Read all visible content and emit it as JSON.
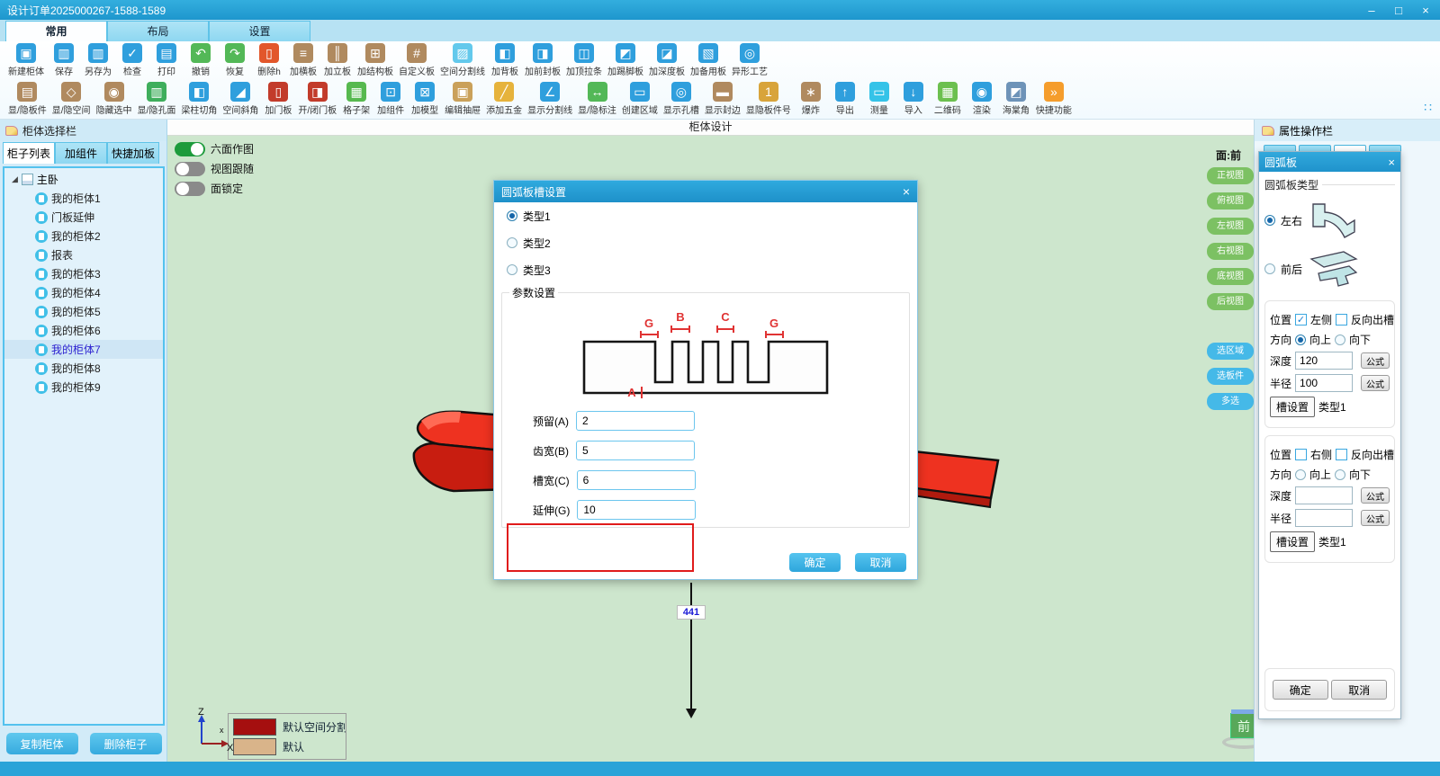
{
  "window": {
    "title": "设计订单2025000267-1588-1589",
    "minimize": "–",
    "maximize": "□",
    "close": "×"
  },
  "ribbon_tabs": [
    {
      "label": "常用",
      "active": true
    },
    {
      "label": "布局",
      "active": false
    },
    {
      "label": "设置",
      "active": false
    }
  ],
  "toolbar": {
    "overflow_glyph": "∷",
    "row1": [
      {
        "label": "新建柜体",
        "icon": "new-cabinet-icon",
        "g": "▣",
        "c": "#2f9fdd"
      },
      {
        "label": "保存",
        "icon": "save-icon",
        "g": "▥",
        "c": "#2f9fdd"
      },
      {
        "label": "另存为",
        "icon": "save-as-icon",
        "g": "▥",
        "c": "#2f9fdd"
      },
      {
        "label": "检查",
        "icon": "check-icon",
        "g": "✓",
        "c": "#2f9fdd"
      },
      {
        "label": "打印",
        "icon": "print-icon",
        "g": "▤",
        "c": "#2f9fdd"
      },
      {
        "label": "撤销",
        "icon": "undo-icon",
        "g": "↶",
        "c": "#53b857"
      },
      {
        "label": "恢复",
        "icon": "redo-icon",
        "g": "↷",
        "c": "#53b857"
      },
      {
        "label": "删除h",
        "icon": "delete-icon",
        "g": "▯",
        "c": "#e2572b"
      },
      {
        "label": "加横板",
        "icon": "add-horizontal-board-icon",
        "g": "≡",
        "c": "#b08a5f"
      },
      {
        "label": "加立板",
        "icon": "add-vertical-board-icon",
        "g": "║",
        "c": "#b08a5f"
      },
      {
        "label": "加结构板",
        "icon": "add-structure-board-icon",
        "g": "⊞",
        "c": "#b08a5f"
      },
      {
        "label": "自定义板",
        "icon": "custom-board-icon",
        "g": "#",
        "c": "#b08a5f"
      },
      {
        "label": "空间分割线",
        "icon": "space-divider-icon",
        "g": "▨",
        "c": "#63c9ec"
      },
      {
        "label": "加背板",
        "icon": "add-back-board-icon",
        "g": "◧",
        "c": "#2f9fdd"
      },
      {
        "label": "加前封板",
        "icon": "add-front-seal-board-icon",
        "g": "◨",
        "c": "#2f9fdd"
      },
      {
        "label": "加顶拉条",
        "icon": "add-top-rail-icon",
        "g": "◫",
        "c": "#2f9fdd"
      },
      {
        "label": "加踢脚板",
        "icon": "add-kickboard-icon",
        "g": "◩",
        "c": "#2f9fdd"
      },
      {
        "label": "加深度板",
        "icon": "add-depth-board-icon",
        "g": "◪",
        "c": "#2f9fdd"
      },
      {
        "label": "加备用板",
        "icon": "add-spare-board-icon",
        "g": "▧",
        "c": "#2f9fdd"
      },
      {
        "label": "异形工艺",
        "icon": "special-craft-icon",
        "g": "◎",
        "c": "#2f9fdd"
      }
    ],
    "row2": [
      {
        "label": "显/隐板件",
        "icon": "toggle-panels-icon",
        "g": "▤",
        "c": "#b08a5f"
      },
      {
        "label": "显/隐空间",
        "icon": "toggle-space-icon",
        "g": "◇",
        "c": "#b08a5f"
      },
      {
        "label": "隐藏选中",
        "icon": "hide-selected-icon",
        "g": "◉",
        "c": "#b08a5f"
      },
      {
        "label": "显/隐孔面",
        "icon": "toggle-hole-face-icon",
        "g": "▥",
        "c": "#3fae5c"
      },
      {
        "label": "梁柱切角",
        "icon": "beam-corner-cut-icon",
        "g": "◧",
        "c": "#2f9fdd"
      },
      {
        "label": "空间斜角",
        "icon": "space-bevel-icon",
        "g": "◢",
        "c": "#2f9fdd"
      },
      {
        "label": "加门板",
        "icon": "add-door-icon",
        "g": "▯",
        "c": "#c23b2a"
      },
      {
        "label": "开/闭门板",
        "icon": "open-close-door-icon",
        "g": "◨",
        "c": "#c23b2a"
      },
      {
        "label": "格子架",
        "icon": "grid-rack-icon",
        "g": "▦",
        "c": "#57b94f"
      },
      {
        "label": "加组件",
        "icon": "add-component-icon",
        "g": "⊡",
        "c": "#2f9fdd"
      },
      {
        "label": "加模型",
        "icon": "add-model-icon",
        "g": "⊠",
        "c": "#2f9fdd"
      },
      {
        "label": "编辑抽屉",
        "icon": "edit-drawer-icon",
        "g": "▣",
        "c": "#caa15a"
      },
      {
        "label": "添加五金",
        "icon": "add-hardware-icon",
        "g": "╱",
        "c": "#e6b33c"
      },
      {
        "label": "显示分割线",
        "icon": "show-divider-line-icon",
        "g": "∠",
        "c": "#2f9fdd"
      },
      {
        "label": "显/隐标注",
        "icon": "toggle-dimension-icon",
        "g": "↔",
        "c": "#53b857"
      },
      {
        "label": "创建区域",
        "icon": "create-region-icon",
        "g": "▭",
        "c": "#2f9fdd"
      },
      {
        "label": "显示孔槽",
        "icon": "show-hole-slot-icon",
        "g": "◎",
        "c": "#2f9fdd"
      },
      {
        "label": "显示封边",
        "icon": "show-edge-band-icon",
        "g": "▬",
        "c": "#b08a5f"
      },
      {
        "label": "显隐板件号",
        "icon": "toggle-part-number-icon",
        "g": "1",
        "c": "#d8a43a"
      },
      {
        "label": "爆炸",
        "icon": "explode-icon",
        "g": "∗",
        "c": "#b08a5f"
      },
      {
        "label": "导出",
        "icon": "export-icon",
        "g": "↑",
        "c": "#2f9fdd"
      },
      {
        "label": "测量",
        "icon": "measure-icon",
        "g": "▭",
        "c": "#35c3e8"
      },
      {
        "label": "导入",
        "icon": "import-icon",
        "g": "↓",
        "c": "#2f9fdd"
      },
      {
        "label": "二维码",
        "icon": "qr-code-icon",
        "g": "▦",
        "c": "#6cc04f"
      },
      {
        "label": "渲染",
        "icon": "render-icon",
        "g": "◉",
        "c": "#2f9fdd"
      },
      {
        "label": "海棠角",
        "icon": "begonia-corner-icon",
        "g": "◩",
        "c": "#6e93b8"
      },
      {
        "label": "快捷功能",
        "icon": "quick-functions-icon",
        "g": "»",
        "c": "#f59d2c"
      }
    ]
  },
  "sidebar": {
    "header": "柜体选择栏",
    "tabs": [
      {
        "label": "柜子列表",
        "active": true
      },
      {
        "label": "加组件",
        "active": false
      },
      {
        "label": "快捷加板",
        "active": false
      }
    ],
    "root": "主卧",
    "items": [
      {
        "label": "我的柜体1",
        "selected": false
      },
      {
        "label": "门板延伸",
        "selected": false
      },
      {
        "label": "我的柜体2",
        "selected": false
      },
      {
        "label": "报表",
        "selected": false
      },
      {
        "label": "我的柜体3",
        "selected": false
      },
      {
        "label": "我的柜体4",
        "selected": false
      },
      {
        "label": "我的柜体5",
        "selected": false
      },
      {
        "label": "我的柜体6",
        "selected": false
      },
      {
        "label": "我的柜体7",
        "selected": true
      },
      {
        "label": "我的柜体8",
        "selected": false
      },
      {
        "label": "我的柜体9",
        "selected": false
      }
    ],
    "copy_button": "复制柜体",
    "delete_button": "删除柜子"
  },
  "canvas": {
    "header": "柜体设计",
    "toggles": [
      {
        "label": "六面作图",
        "on": true
      },
      {
        "label": "视图跟随",
        "on": false
      },
      {
        "label": "面锁定",
        "on": false
      }
    ],
    "face_label": "面:前",
    "dim_label": "441",
    "legend": [
      {
        "label": "默认空间分割",
        "color": "#a50f0f"
      },
      {
        "label": "默认",
        "color": "#d9b48a"
      }
    ],
    "axis": {
      "z": "Z",
      "x": "X",
      "x2": "x"
    },
    "compass": "前"
  },
  "view_buttons": {
    "green": [
      "正视图",
      "俯视图",
      "左视图",
      "右视图",
      "底视图",
      "后视图"
    ],
    "blue": [
      "选区域",
      "选板件",
      "多选"
    ]
  },
  "dialog": {
    "title": "圆弧板槽设置",
    "close": "×",
    "radios": [
      {
        "label": "类型1",
        "checked": true
      },
      {
        "label": "类型2",
        "checked": false
      },
      {
        "label": "类型3",
        "checked": false
      }
    ],
    "group": "参数设置",
    "diagram": {
      "g": "G",
      "b": "B",
      "c": "C",
      "a": "A"
    },
    "fields": [
      {
        "label": "预留(A)",
        "value": "2",
        "highlight": false
      },
      {
        "label": "齿宽(B)",
        "value": "5",
        "highlight": false
      },
      {
        "label": "槽宽(C)",
        "value": "6",
        "highlight": false
      },
      {
        "label": "延伸(G)",
        "value": "10",
        "highlight": true
      }
    ],
    "ok": "确定",
    "cancel": "取消"
  },
  "panel": {
    "header": "属性操作栏",
    "title": "圆弧板",
    "close": "×",
    "type_group": "圆弧板类型",
    "type_radios": [
      {
        "label": "左右",
        "checked": true
      },
      {
        "label": "前后",
        "checked": false
      }
    ],
    "sections": [
      {
        "pos_label": "位置",
        "side_label": "左侧",
        "side_checked": true,
        "reverse_label": "反向出槽",
        "reverse_checked": false,
        "dir_label": "方向",
        "up_label": "向上",
        "up_checked": true,
        "down_label": "向下",
        "down_checked": false,
        "depth_label": "深度",
        "depth_value": "120",
        "radius_label": "半径",
        "radius_value": "100",
        "formula_label": "公式",
        "slot_button": "槽设置",
        "slot_type": "类型1"
      },
      {
        "pos_label": "位置",
        "side_label": "右侧",
        "side_checked": false,
        "reverse_label": "反向出槽",
        "reverse_checked": false,
        "dir_label": "方向",
        "up_label": "向上",
        "up_checked": false,
        "down_label": "向下",
        "down_checked": false,
        "depth_label": "深度",
        "depth_value": "",
        "radius_label": "半径",
        "radius_value": "",
        "formula_label": "公式",
        "slot_button": "槽设置",
        "slot_type": "类型1"
      }
    ],
    "ok": "确定",
    "cancel": "取消"
  }
}
